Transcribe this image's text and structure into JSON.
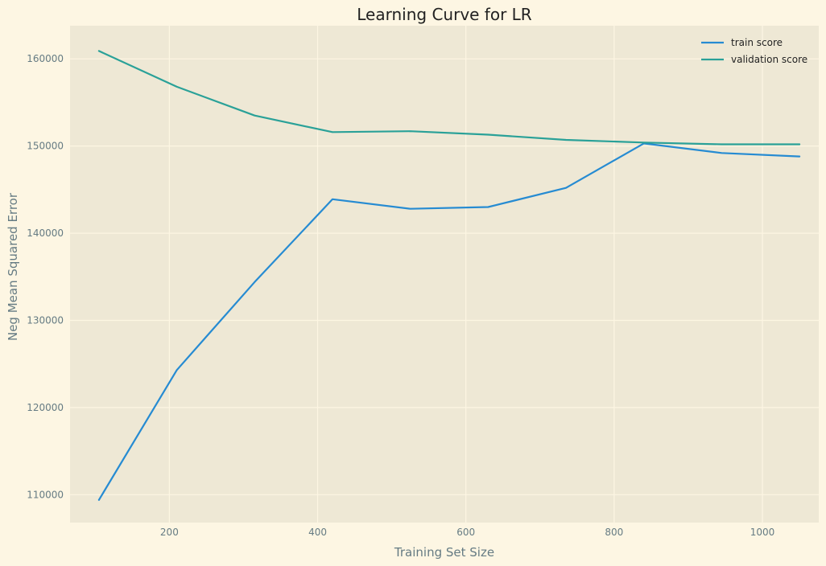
{
  "chart_data": {
    "type": "line",
    "title": "Learning Curve for LR",
    "xlabel": "Training Set Size",
    "ylabel": "Neg Mean Squared Error",
    "xlim": [
      66,
      1076
    ],
    "ylim": [
      106800,
      163800
    ],
    "xticks": [
      200,
      400,
      600,
      800,
      1000
    ],
    "yticks": [
      110000,
      120000,
      130000,
      140000,
      150000,
      160000
    ],
    "grid": true,
    "legend_position": "top-right",
    "x": [
      105,
      210,
      315,
      420,
      525,
      630,
      735,
      840,
      945,
      1050
    ],
    "series": [
      {
        "name": "train score",
        "color": "#268bd2",
        "values": [
          109400,
          124300,
          134400,
          143900,
          142800,
          143000,
          145200,
          150300,
          149200,
          148800
        ]
      },
      {
        "name": "validation score",
        "color": "#2aa198",
        "values": [
          160900,
          156800,
          153500,
          151600,
          151700,
          151300,
          150700,
          150400,
          150200,
          150200
        ]
      }
    ],
    "colors": {
      "page_background": "#fdf6e3",
      "plot_background": "#eee8d5",
      "grid": "#fdf6e3",
      "tick_text": "#657b83"
    }
  }
}
